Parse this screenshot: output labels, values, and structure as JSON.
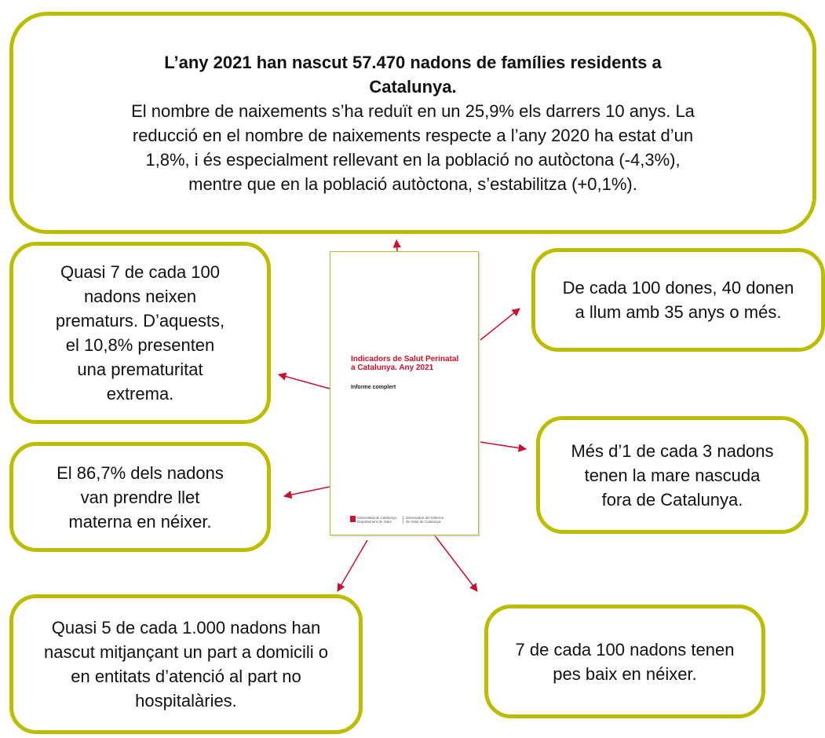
{
  "header": {
    "title_lines": [
      "L’any 2021 han nascut 57.470 nadons de famílies residents a",
      "Catalunya."
    ],
    "body_lines": [
      "El nombre de naixements s’ha reduït en un 25,9% els darrers 10 anys. La",
      "reducció en el nombre de naixements respecte a l’any 2020 ha estat d’un",
      "1,8%, i és especialment rellevant en la població no autòctona (-4,3%),",
      "mentre que en la població autòctona, s’estabilitza (+0,1%)."
    ]
  },
  "cards": [
    {
      "lines": [
        "Quasi 7 de cada 100",
        "nadons neixen",
        "prematurs. D’aquests,",
        "el 10,8% presenten",
        "una prematuritat",
        "extrema."
      ]
    },
    {
      "lines": [
        "De cada 100 dones, 40 donen",
        "a llum amb 35 anys o més."
      ]
    },
    {
      "lines": [
        "El 86,7% dels nadons",
        "van prendre llet",
        "materna en néixer."
      ]
    },
    {
      "lines": [
        "Més d’1 de cada 3 nadons",
        "tenen la mare nascuda",
        "fora de Catalunya."
      ]
    },
    {
      "lines": [
        "Quasi 5 de cada 1.000 nadons han",
        "nascut mitjançant un part a domicili o",
        "en entitats d’atenció al part no",
        "hospitalàries."
      ]
    },
    {
      "lines": [
        "7 de cada 100 nadons tenen",
        "pes baix en néixer."
      ]
    }
  ],
  "document": {
    "title_lines": [
      "Indicadors de Salut Perinatal",
      "a Catalunya. Any 2021"
    ],
    "subtitle": "Informe complert",
    "footer_left": [
      "Generalitat de Catalunya",
      "Departament de Salut"
    ],
    "footer_right": [
      "Observatori del Sistema",
      "de Salut de Catalunya"
    ]
  }
}
